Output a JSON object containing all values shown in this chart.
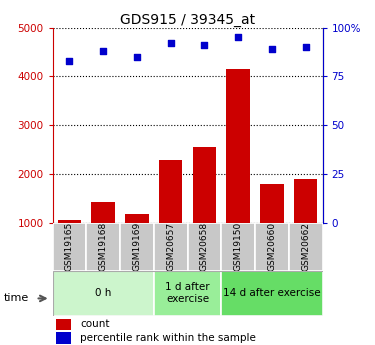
{
  "title": "GDS915 / 39345_at",
  "samples": [
    "GSM19165",
    "GSM19168",
    "GSM19169",
    "GSM20657",
    "GSM20658",
    "GSM19150",
    "GSM20660",
    "GSM20662"
  ],
  "counts": [
    1050,
    1430,
    1180,
    2280,
    2550,
    4150,
    1800,
    1900
  ],
  "percentiles": [
    83,
    88,
    85,
    92,
    91,
    95,
    89,
    90
  ],
  "groups": [
    {
      "label": "0 h",
      "start": 0,
      "end": 3,
      "color": "#ccf5cc"
    },
    {
      "label": "1 d after\nexercise",
      "start": 3,
      "end": 5,
      "color": "#99ee99"
    },
    {
      "label": "14 d after exercise",
      "start": 5,
      "end": 8,
      "color": "#66dd66"
    }
  ],
  "bar_color": "#cc0000",
  "dot_color": "#0000cc",
  "ylim_left": [
    1000,
    5000
  ],
  "ylim_right": [
    0,
    100
  ],
  "yticks_left": [
    1000,
    2000,
    3000,
    4000,
    5000
  ],
  "yticks_right": [
    0,
    25,
    50,
    75,
    100
  ],
  "yticklabels_right": [
    "0",
    "25",
    "50",
    "75",
    "100%"
  ],
  "left_axis_color": "#cc0000",
  "right_axis_color": "#0000cc",
  "tick_bg_color": "#c8c8c8",
  "fig_width": 3.75,
  "fig_height": 3.45
}
